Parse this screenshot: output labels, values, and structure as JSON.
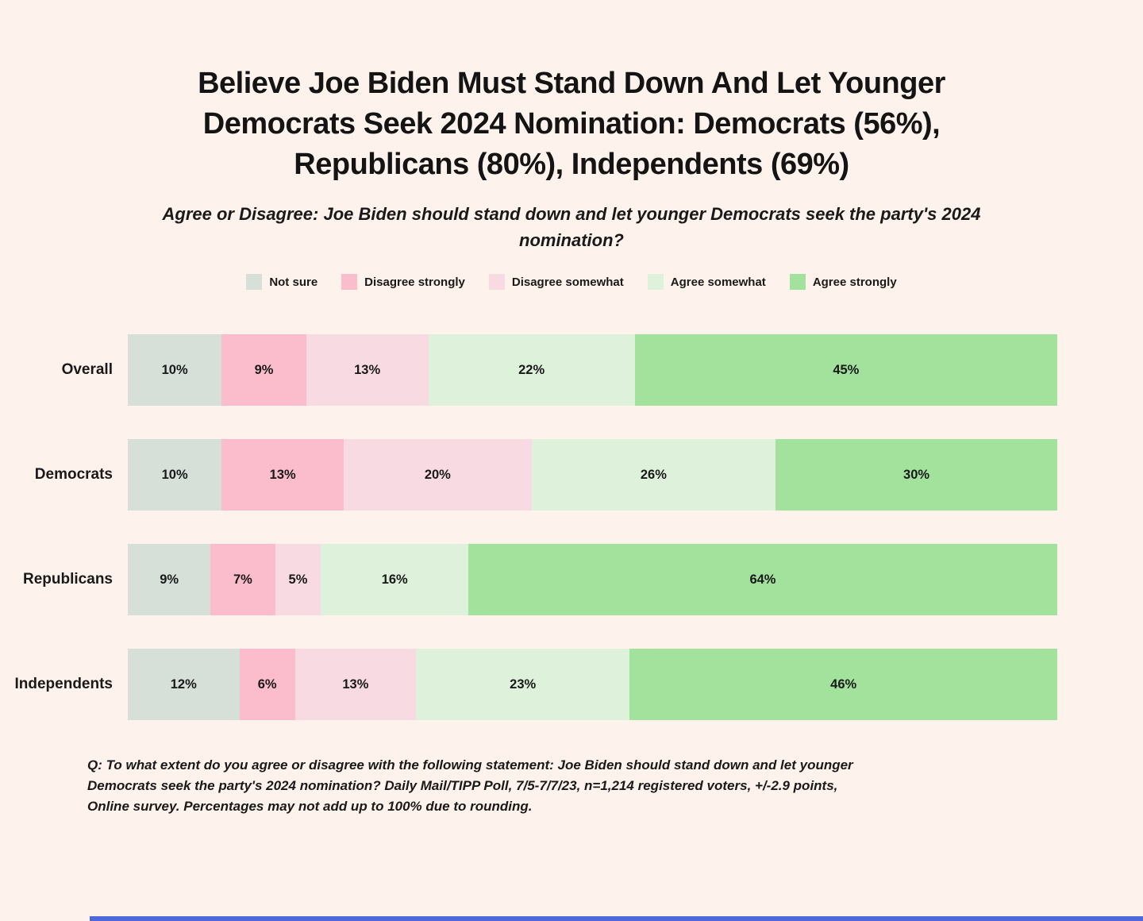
{
  "background_color": "#fdf3ec",
  "text_color": "#191919",
  "accent_bar_color": "#4c68da",
  "title_lines": [
    "Believe Joe Biden Must Stand Down And Let Younger",
    "Democrats Seek 2024 Nomination: Democrats (56%),",
    "Republicans (80%), Independents (69%)"
  ],
  "subtitle_lines": [
    "Agree or Disagree: Joe Biden should stand down and let younger Democrats seek the party's 2024",
    "nomination?"
  ],
  "footnote_lines": [
    "Q: To what extent do you agree or disagree with the following statement: Joe Biden should stand down and let younger",
    "Democrats seek the party's 2024 nomination? Daily Mail/TIPP Poll, 7/5-7/7/23, n=1,214 registered voters, +/-2.9 points,",
    "Online survey.  Percentages may not add up to 100% due to rounding."
  ],
  "chart_data": {
    "type": "bar",
    "variant": "horizontal-stacked-100",
    "title": "Believe Joe Biden Must Stand Down And Let Younger Democrats Seek 2024 Nomination: Democrats (56%), Republicans (80%), Independents (69%)",
    "subtitle": "Agree or Disagree: Joe Biden should stand down and let younger Democrats seek the party's 2024 nomination?",
    "legend_position": "top",
    "value_suffix": "%",
    "xlim": [
      0,
      100
    ],
    "categories": [
      "Overall",
      "Democrats",
      "Republicans",
      "Independents"
    ],
    "series": [
      {
        "name": "Not sure",
        "color": "#d6e0d9",
        "values": [
          10,
          10,
          9,
          12
        ]
      },
      {
        "name": "Disagree strongly",
        "color": "#fbbccb",
        "values": [
          9,
          13,
          7,
          6
        ]
      },
      {
        "name": "Disagree somewhat",
        "color": "#f8dbe2",
        "values": [
          13,
          20,
          5,
          13
        ]
      },
      {
        "name": "Agree somewhat",
        "color": "#def2db",
        "values": [
          22,
          26,
          16,
          23
        ]
      },
      {
        "name": "Agree strongly",
        "color": "#a2e29d",
        "values": [
          45,
          30,
          64,
          46
        ]
      }
    ]
  }
}
